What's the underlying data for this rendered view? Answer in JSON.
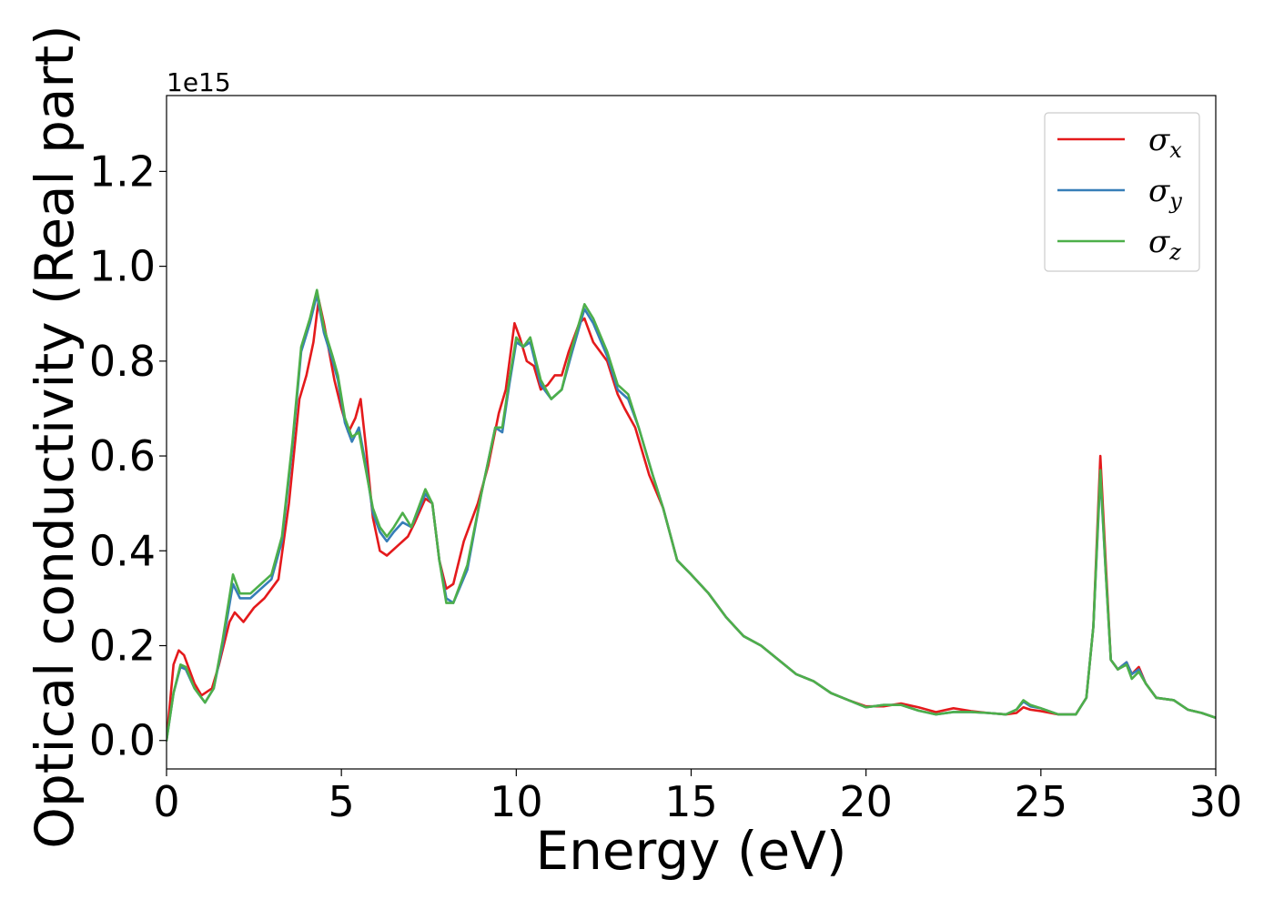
{
  "chart_data": {
    "type": "line",
    "xlabel": "Energy (eV)",
    "ylabel": "Optical conductivity (Real part)",
    "y_offset_text": "1e15",
    "xlim": [
      0,
      30
    ],
    "ylim": [
      -0.06,
      1.36
    ],
    "xticks": [
      0,
      5,
      10,
      15,
      20,
      25,
      30
    ],
    "xtick_labels": [
      "0",
      "5",
      "10",
      "15",
      "20",
      "25",
      "30"
    ],
    "yticks": [
      0.0,
      0.2,
      0.4,
      0.6,
      0.8,
      1.0,
      1.2
    ],
    "ytick_labels": [
      "0.0",
      "0.2",
      "0.4",
      "0.6",
      "0.8",
      "1.0",
      "1.2"
    ],
    "grid": false,
    "legend_position": "top-right",
    "series": [
      {
        "name": "σx",
        "symbol": "σ",
        "subscript": "x",
        "color": "#e41a1c",
        "points": [
          [
            0,
            0.0
          ],
          [
            0.2,
            0.16
          ],
          [
            0.35,
            0.19
          ],
          [
            0.5,
            0.18
          ],
          [
            0.8,
            0.12
          ],
          [
            1.0,
            0.095
          ],
          [
            1.3,
            0.11
          ],
          [
            1.5,
            0.16
          ],
          [
            1.8,
            0.25
          ],
          [
            1.95,
            0.27
          ],
          [
            2.2,
            0.25
          ],
          [
            2.5,
            0.28
          ],
          [
            2.8,
            0.3
          ],
          [
            3.2,
            0.34
          ],
          [
            3.5,
            0.5
          ],
          [
            3.8,
            0.72
          ],
          [
            4.0,
            0.77
          ],
          [
            4.2,
            0.84
          ],
          [
            4.35,
            0.93
          ],
          [
            4.5,
            0.88
          ],
          [
            4.8,
            0.76
          ],
          [
            5.0,
            0.7
          ],
          [
            5.2,
            0.65
          ],
          [
            5.4,
            0.68
          ],
          [
            5.55,
            0.72
          ],
          [
            5.7,
            0.62
          ],
          [
            5.9,
            0.47
          ],
          [
            6.1,
            0.4
          ],
          [
            6.3,
            0.39
          ],
          [
            6.6,
            0.41
          ],
          [
            6.9,
            0.43
          ],
          [
            7.1,
            0.46
          ],
          [
            7.4,
            0.51
          ],
          [
            7.6,
            0.5
          ],
          [
            7.8,
            0.38
          ],
          [
            8.0,
            0.32
          ],
          [
            8.2,
            0.33
          ],
          [
            8.5,
            0.42
          ],
          [
            8.9,
            0.5
          ],
          [
            9.2,
            0.58
          ],
          [
            9.5,
            0.69
          ],
          [
            9.7,
            0.74
          ],
          [
            9.95,
            0.88
          ],
          [
            10.1,
            0.85
          ],
          [
            10.3,
            0.8
          ],
          [
            10.5,
            0.79
          ],
          [
            10.7,
            0.74
          ],
          [
            10.9,
            0.75
          ],
          [
            11.1,
            0.77
          ],
          [
            11.3,
            0.77
          ],
          [
            11.5,
            0.82
          ],
          [
            11.8,
            0.88
          ],
          [
            11.95,
            0.89
          ],
          [
            12.2,
            0.84
          ],
          [
            12.6,
            0.8
          ],
          [
            12.9,
            0.73
          ],
          [
            13.1,
            0.7
          ],
          [
            13.4,
            0.66
          ],
          [
            13.8,
            0.56
          ],
          [
            14.2,
            0.49
          ],
          [
            14.6,
            0.38
          ],
          [
            15.0,
            0.35
          ],
          [
            15.5,
            0.31
          ],
          [
            16.0,
            0.26
          ],
          [
            16.5,
            0.22
          ],
          [
            17.0,
            0.2
          ],
          [
            17.5,
            0.17
          ],
          [
            18.0,
            0.14
          ],
          [
            18.5,
            0.125
          ],
          [
            19.0,
            0.1
          ],
          [
            19.5,
            0.085
          ],
          [
            20.0,
            0.072
          ],
          [
            20.5,
            0.072
          ],
          [
            21.0,
            0.078
          ],
          [
            21.5,
            0.07
          ],
          [
            22.0,
            0.06
          ],
          [
            22.5,
            0.068
          ],
          [
            23.0,
            0.062
          ],
          [
            23.5,
            0.058
          ],
          [
            24.0,
            0.055
          ],
          [
            24.3,
            0.058
          ],
          [
            24.5,
            0.07
          ],
          [
            24.7,
            0.065
          ],
          [
            25.0,
            0.062
          ],
          [
            25.5,
            0.055
          ],
          [
            26.0,
            0.055
          ],
          [
            26.3,
            0.09
          ],
          [
            26.5,
            0.24
          ],
          [
            26.7,
            0.6
          ],
          [
            26.85,
            0.38
          ],
          [
            27.0,
            0.17
          ],
          [
            27.2,
            0.15
          ],
          [
            27.45,
            0.165
          ],
          [
            27.6,
            0.14
          ],
          [
            27.8,
            0.155
          ],
          [
            28.0,
            0.12
          ],
          [
            28.3,
            0.09
          ],
          [
            28.8,
            0.085
          ],
          [
            29.2,
            0.065
          ],
          [
            29.6,
            0.058
          ],
          [
            30.0,
            0.048
          ]
        ]
      },
      {
        "name": "σy",
        "symbol": "σ",
        "subscript": "y",
        "color": "#377eb8",
        "points": [
          [
            0,
            0.0
          ],
          [
            0.2,
            0.1
          ],
          [
            0.4,
            0.155
          ],
          [
            0.55,
            0.15
          ],
          [
            0.8,
            0.11
          ],
          [
            1.1,
            0.08
          ],
          [
            1.35,
            0.11
          ],
          [
            1.6,
            0.2
          ],
          [
            1.9,
            0.33
          ],
          [
            2.1,
            0.3
          ],
          [
            2.4,
            0.3
          ],
          [
            2.7,
            0.32
          ],
          [
            3.0,
            0.34
          ],
          [
            3.3,
            0.42
          ],
          [
            3.6,
            0.62
          ],
          [
            3.85,
            0.82
          ],
          [
            4.1,
            0.88
          ],
          [
            4.3,
            0.94
          ],
          [
            4.5,
            0.86
          ],
          [
            4.75,
            0.8
          ],
          [
            4.9,
            0.76
          ],
          [
            5.1,
            0.67
          ],
          [
            5.3,
            0.63
          ],
          [
            5.5,
            0.66
          ],
          [
            5.7,
            0.58
          ],
          [
            5.9,
            0.48
          ],
          [
            6.1,
            0.44
          ],
          [
            6.3,
            0.42
          ],
          [
            6.5,
            0.44
          ],
          [
            6.75,
            0.46
          ],
          [
            7.0,
            0.45
          ],
          [
            7.4,
            0.52
          ],
          [
            7.6,
            0.5
          ],
          [
            7.8,
            0.38
          ],
          [
            8.0,
            0.3
          ],
          [
            8.2,
            0.29
          ],
          [
            8.6,
            0.36
          ],
          [
            9.0,
            0.52
          ],
          [
            9.4,
            0.66
          ],
          [
            9.6,
            0.65
          ],
          [
            9.8,
            0.75
          ],
          [
            10.0,
            0.84
          ],
          [
            10.2,
            0.83
          ],
          [
            10.4,
            0.84
          ],
          [
            10.7,
            0.75
          ],
          [
            11.0,
            0.72
          ],
          [
            11.3,
            0.74
          ],
          [
            11.6,
            0.82
          ],
          [
            11.95,
            0.91
          ],
          [
            12.2,
            0.88
          ],
          [
            12.6,
            0.81
          ],
          [
            12.9,
            0.74
          ],
          [
            13.2,
            0.72
          ],
          [
            13.5,
            0.66
          ],
          [
            13.9,
            0.56
          ],
          [
            14.2,
            0.49
          ],
          [
            14.6,
            0.38
          ],
          [
            15.0,
            0.35
          ],
          [
            15.5,
            0.31
          ],
          [
            16.0,
            0.26
          ],
          [
            16.5,
            0.22
          ],
          [
            17.0,
            0.2
          ],
          [
            17.5,
            0.17
          ],
          [
            18.0,
            0.14
          ],
          [
            18.5,
            0.125
          ],
          [
            19.0,
            0.1
          ],
          [
            19.5,
            0.085
          ],
          [
            20.0,
            0.07
          ],
          [
            20.5,
            0.075
          ],
          [
            21.0,
            0.075
          ],
          [
            21.5,
            0.063
          ],
          [
            22.0,
            0.055
          ],
          [
            22.5,
            0.06
          ],
          [
            23.0,
            0.06
          ],
          [
            23.5,
            0.058
          ],
          [
            24.0,
            0.055
          ],
          [
            24.3,
            0.065
          ],
          [
            24.5,
            0.082
          ],
          [
            24.7,
            0.072
          ],
          [
            25.0,
            0.068
          ],
          [
            25.5,
            0.055
          ],
          [
            26.0,
            0.055
          ],
          [
            26.3,
            0.09
          ],
          [
            26.5,
            0.24
          ],
          [
            26.7,
            0.56
          ],
          [
            26.85,
            0.36
          ],
          [
            27.0,
            0.17
          ],
          [
            27.2,
            0.15
          ],
          [
            27.45,
            0.165
          ],
          [
            27.6,
            0.14
          ],
          [
            27.8,
            0.15
          ],
          [
            28.0,
            0.12
          ],
          [
            28.3,
            0.09
          ],
          [
            28.8,
            0.085
          ],
          [
            29.2,
            0.065
          ],
          [
            29.6,
            0.058
          ],
          [
            30.0,
            0.048
          ]
        ]
      },
      {
        "name": "σz",
        "symbol": "σ",
        "subscript": "z",
        "color": "#4daf4a",
        "points": [
          [
            0,
            0.0
          ],
          [
            0.2,
            0.1
          ],
          [
            0.4,
            0.16
          ],
          [
            0.55,
            0.155
          ],
          [
            0.8,
            0.11
          ],
          [
            1.1,
            0.08
          ],
          [
            1.35,
            0.11
          ],
          [
            1.6,
            0.21
          ],
          [
            1.9,
            0.35
          ],
          [
            2.1,
            0.31
          ],
          [
            2.4,
            0.31
          ],
          [
            2.7,
            0.33
          ],
          [
            3.0,
            0.35
          ],
          [
            3.3,
            0.43
          ],
          [
            3.6,
            0.63
          ],
          [
            3.85,
            0.83
          ],
          [
            4.1,
            0.89
          ],
          [
            4.3,
            0.95
          ],
          [
            4.5,
            0.87
          ],
          [
            4.75,
            0.81
          ],
          [
            4.9,
            0.77
          ],
          [
            5.1,
            0.68
          ],
          [
            5.3,
            0.64
          ],
          [
            5.5,
            0.65
          ],
          [
            5.7,
            0.57
          ],
          [
            5.9,
            0.49
          ],
          [
            6.1,
            0.45
          ],
          [
            6.3,
            0.43
          ],
          [
            6.5,
            0.45
          ],
          [
            6.75,
            0.48
          ],
          [
            7.0,
            0.45
          ],
          [
            7.4,
            0.53
          ],
          [
            7.6,
            0.5
          ],
          [
            7.8,
            0.38
          ],
          [
            8.0,
            0.29
          ],
          [
            8.2,
            0.29
          ],
          [
            8.6,
            0.37
          ],
          [
            9.0,
            0.52
          ],
          [
            9.4,
            0.66
          ],
          [
            9.6,
            0.66
          ],
          [
            9.8,
            0.76
          ],
          [
            10.0,
            0.85
          ],
          [
            10.2,
            0.83
          ],
          [
            10.4,
            0.85
          ],
          [
            10.7,
            0.76
          ],
          [
            11.0,
            0.72
          ],
          [
            11.3,
            0.74
          ],
          [
            11.6,
            0.83
          ],
          [
            11.95,
            0.92
          ],
          [
            12.2,
            0.89
          ],
          [
            12.6,
            0.82
          ],
          [
            12.9,
            0.75
          ],
          [
            13.2,
            0.73
          ],
          [
            13.5,
            0.66
          ],
          [
            13.9,
            0.56
          ],
          [
            14.2,
            0.49
          ],
          [
            14.6,
            0.38
          ],
          [
            15.0,
            0.35
          ],
          [
            15.5,
            0.31
          ],
          [
            16.0,
            0.26
          ],
          [
            16.5,
            0.22
          ],
          [
            17.0,
            0.2
          ],
          [
            17.5,
            0.17
          ],
          [
            18.0,
            0.14
          ],
          [
            18.5,
            0.125
          ],
          [
            19.0,
            0.1
          ],
          [
            19.5,
            0.085
          ],
          [
            20.0,
            0.07
          ],
          [
            20.5,
            0.075
          ],
          [
            21.0,
            0.075
          ],
          [
            21.5,
            0.063
          ],
          [
            22.0,
            0.055
          ],
          [
            22.5,
            0.06
          ],
          [
            23.0,
            0.06
          ],
          [
            23.5,
            0.058
          ],
          [
            24.0,
            0.055
          ],
          [
            24.3,
            0.065
          ],
          [
            24.5,
            0.085
          ],
          [
            24.7,
            0.075
          ],
          [
            25.0,
            0.068
          ],
          [
            25.5,
            0.055
          ],
          [
            26.0,
            0.055
          ],
          [
            26.3,
            0.09
          ],
          [
            26.5,
            0.24
          ],
          [
            26.7,
            0.57
          ],
          [
            26.85,
            0.36
          ],
          [
            27.0,
            0.17
          ],
          [
            27.2,
            0.15
          ],
          [
            27.45,
            0.16
          ],
          [
            27.6,
            0.13
          ],
          [
            27.8,
            0.145
          ],
          [
            28.0,
            0.12
          ],
          [
            28.3,
            0.09
          ],
          [
            28.8,
            0.085
          ],
          [
            29.2,
            0.065
          ],
          [
            29.6,
            0.058
          ],
          [
            30.0,
            0.048
          ]
        ]
      }
    ]
  }
}
